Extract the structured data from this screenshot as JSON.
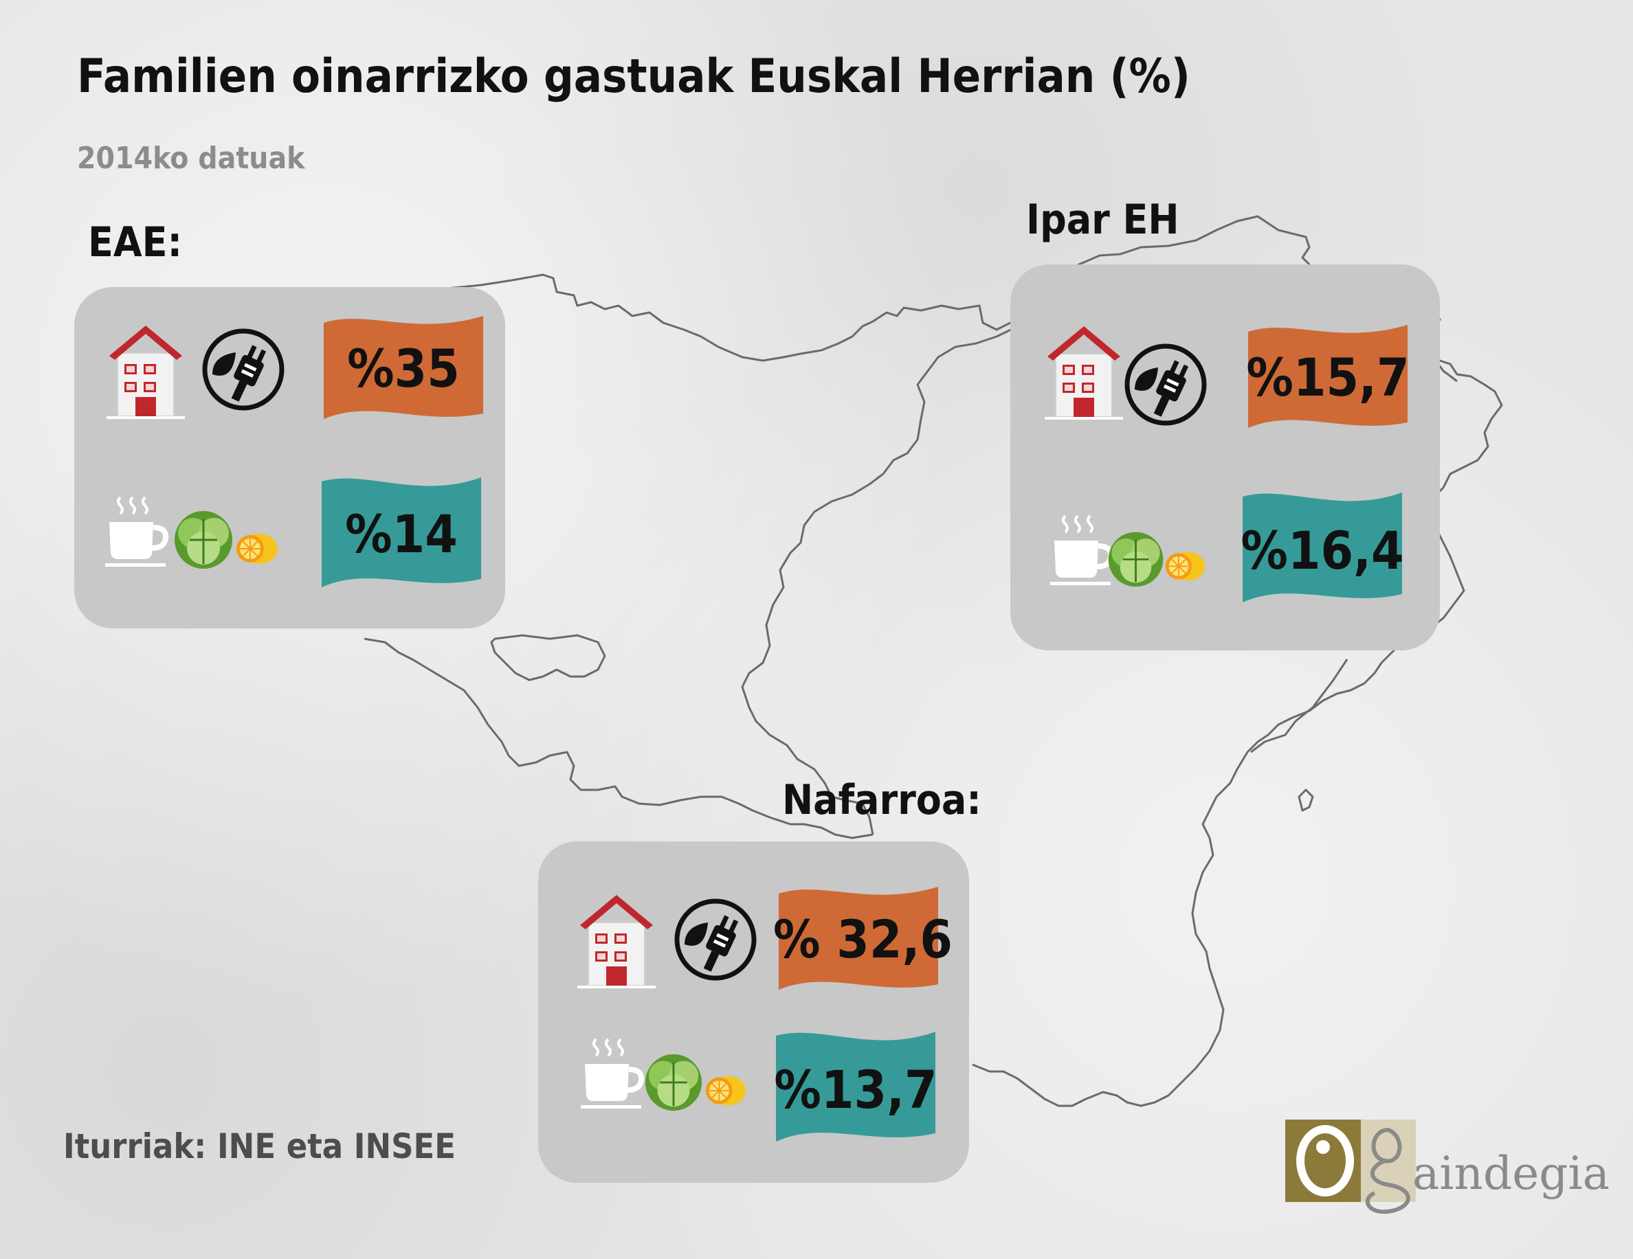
{
  "title": "Familien oinarrizko gastuak Euskal Herrian (%)",
  "subtitle": "2014ko datuak",
  "source": "Iturriak: INE eta INSEE",
  "colors": {
    "housing_banner": "#cf6a37",
    "food_banner": "#369b98",
    "panel": "#c8c8c8",
    "logo_gold": "#8b7a3a"
  },
  "icons": {
    "housing": [
      "house-icon",
      "energy-plug-leaf-icon"
    ],
    "food": [
      "coffee-cup-icon",
      "lettuce-icon",
      "lemon-icon"
    ]
  },
  "regions": {
    "eae": {
      "label": "EAE:",
      "housing_energy": "%35",
      "food": "%14"
    },
    "ipar": {
      "label": "Ipar EH",
      "housing_energy": "%15,7",
      "food": "%16,4"
    },
    "nafarroa": {
      "label": "Nafarroa:",
      "housing_energy": "% 32,6",
      "food": "%13,7"
    }
  },
  "logo": {
    "text": "aindegia"
  }
}
